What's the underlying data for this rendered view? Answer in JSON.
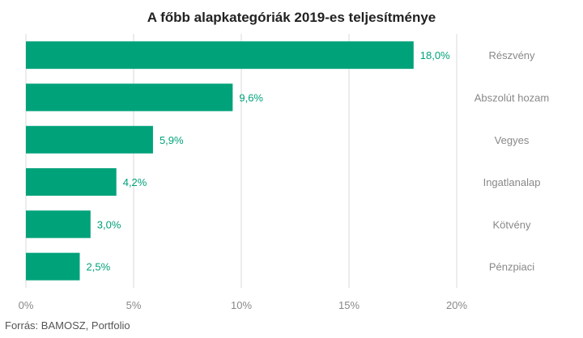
{
  "chart_data": {
    "type": "bar",
    "orientation": "horizontal",
    "title": "A főbb alapkategóriák 2019-es teljesítménye",
    "categories": [
      "Részvény",
      "Abszolút hozam",
      "Vegyes",
      "Ingatlanalap",
      "Kötvény",
      "Pénzpiaci"
    ],
    "values": [
      18.0,
      9.6,
      5.9,
      4.2,
      3.0,
      2.5
    ],
    "value_labels": [
      "18,0%",
      "9,6%",
      "5,9%",
      "4,2%",
      "3,0%",
      "2,5%"
    ],
    "xlim": [
      0,
      20
    ],
    "x_ticks": [
      0,
      5,
      10,
      15,
      20
    ],
    "x_tick_labels": [
      "0%",
      "5%",
      "10%",
      "15%",
      "20%"
    ],
    "grid": true,
    "category_labels_position": "right",
    "colors": {
      "bar": "#00A27A",
      "value_label": "#00A27A",
      "category_label": "#888888",
      "tick_label": "#888888",
      "grid": "#d9d9d9"
    }
  },
  "source": "Forrás: BAMOSZ, Portfolio"
}
